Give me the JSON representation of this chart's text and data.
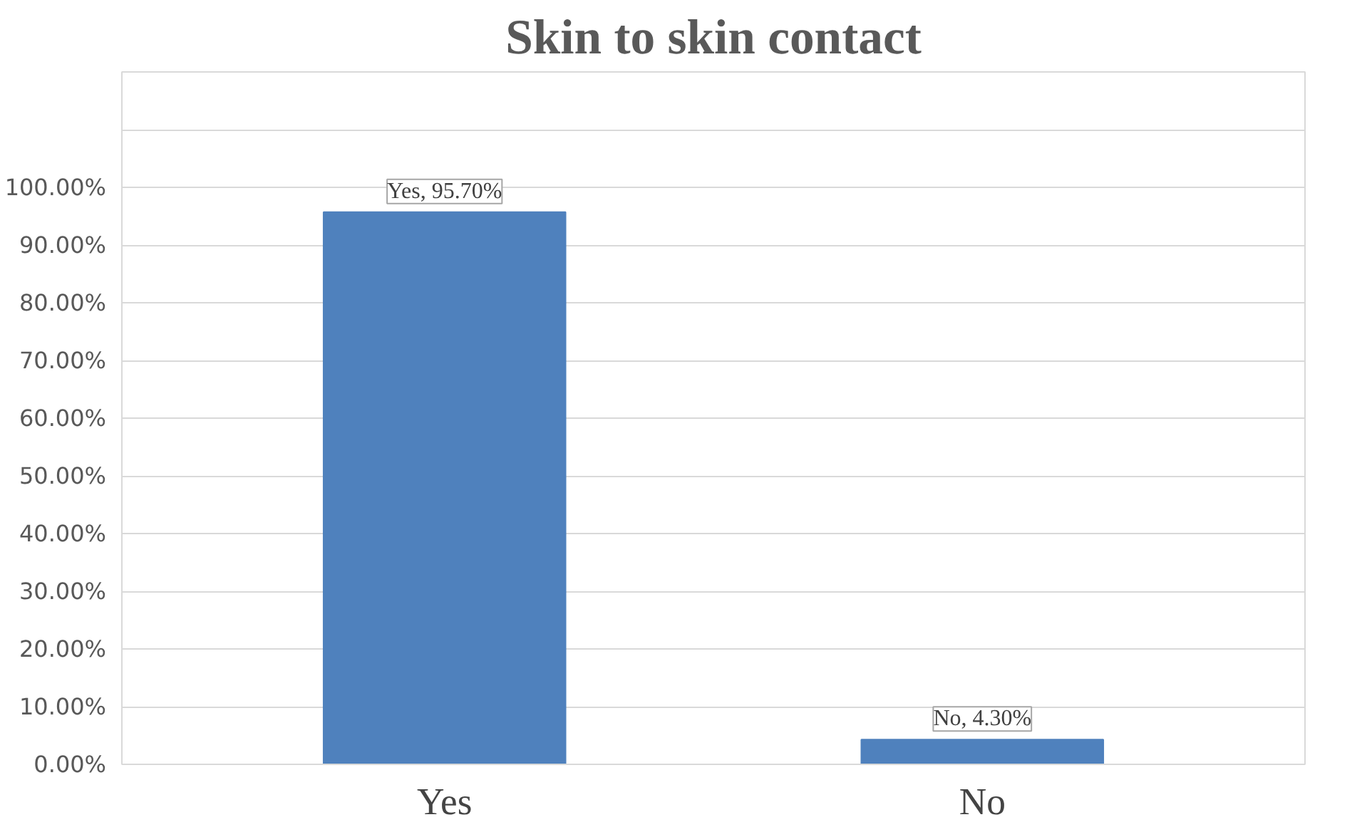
{
  "chart_data": {
    "type": "bar",
    "title": "Skin to skin contact",
    "categories": [
      "Yes",
      "No"
    ],
    "values": [
      95.7,
      4.3
    ],
    "color": "#4f81bd",
    "value_labels": [
      "Yes, 95.70%",
      "No, 4.30%"
    ],
    "ylim": [
      0,
      120
    ],
    "yticks": [
      {
        "value": 0,
        "label": "0.00%"
      },
      {
        "value": 10,
        "label": "10.00%"
      },
      {
        "value": 20,
        "label": "20.00%"
      },
      {
        "value": 30,
        "label": "30.00%"
      },
      {
        "value": 40,
        "label": "40.00%"
      },
      {
        "value": 50,
        "label": "50.00%"
      },
      {
        "value": 60,
        "label": "60.00%"
      },
      {
        "value": 70,
        "label": "70.00%"
      },
      {
        "value": 80,
        "label": "80.00%"
      },
      {
        "value": 90,
        "label": "90.00%"
      },
      {
        "value": 100,
        "label": "100.00%"
      },
      {
        "value": 110,
        "label": null
      },
      {
        "value": 120,
        "label": null
      }
    ],
    "grid": "y"
  }
}
